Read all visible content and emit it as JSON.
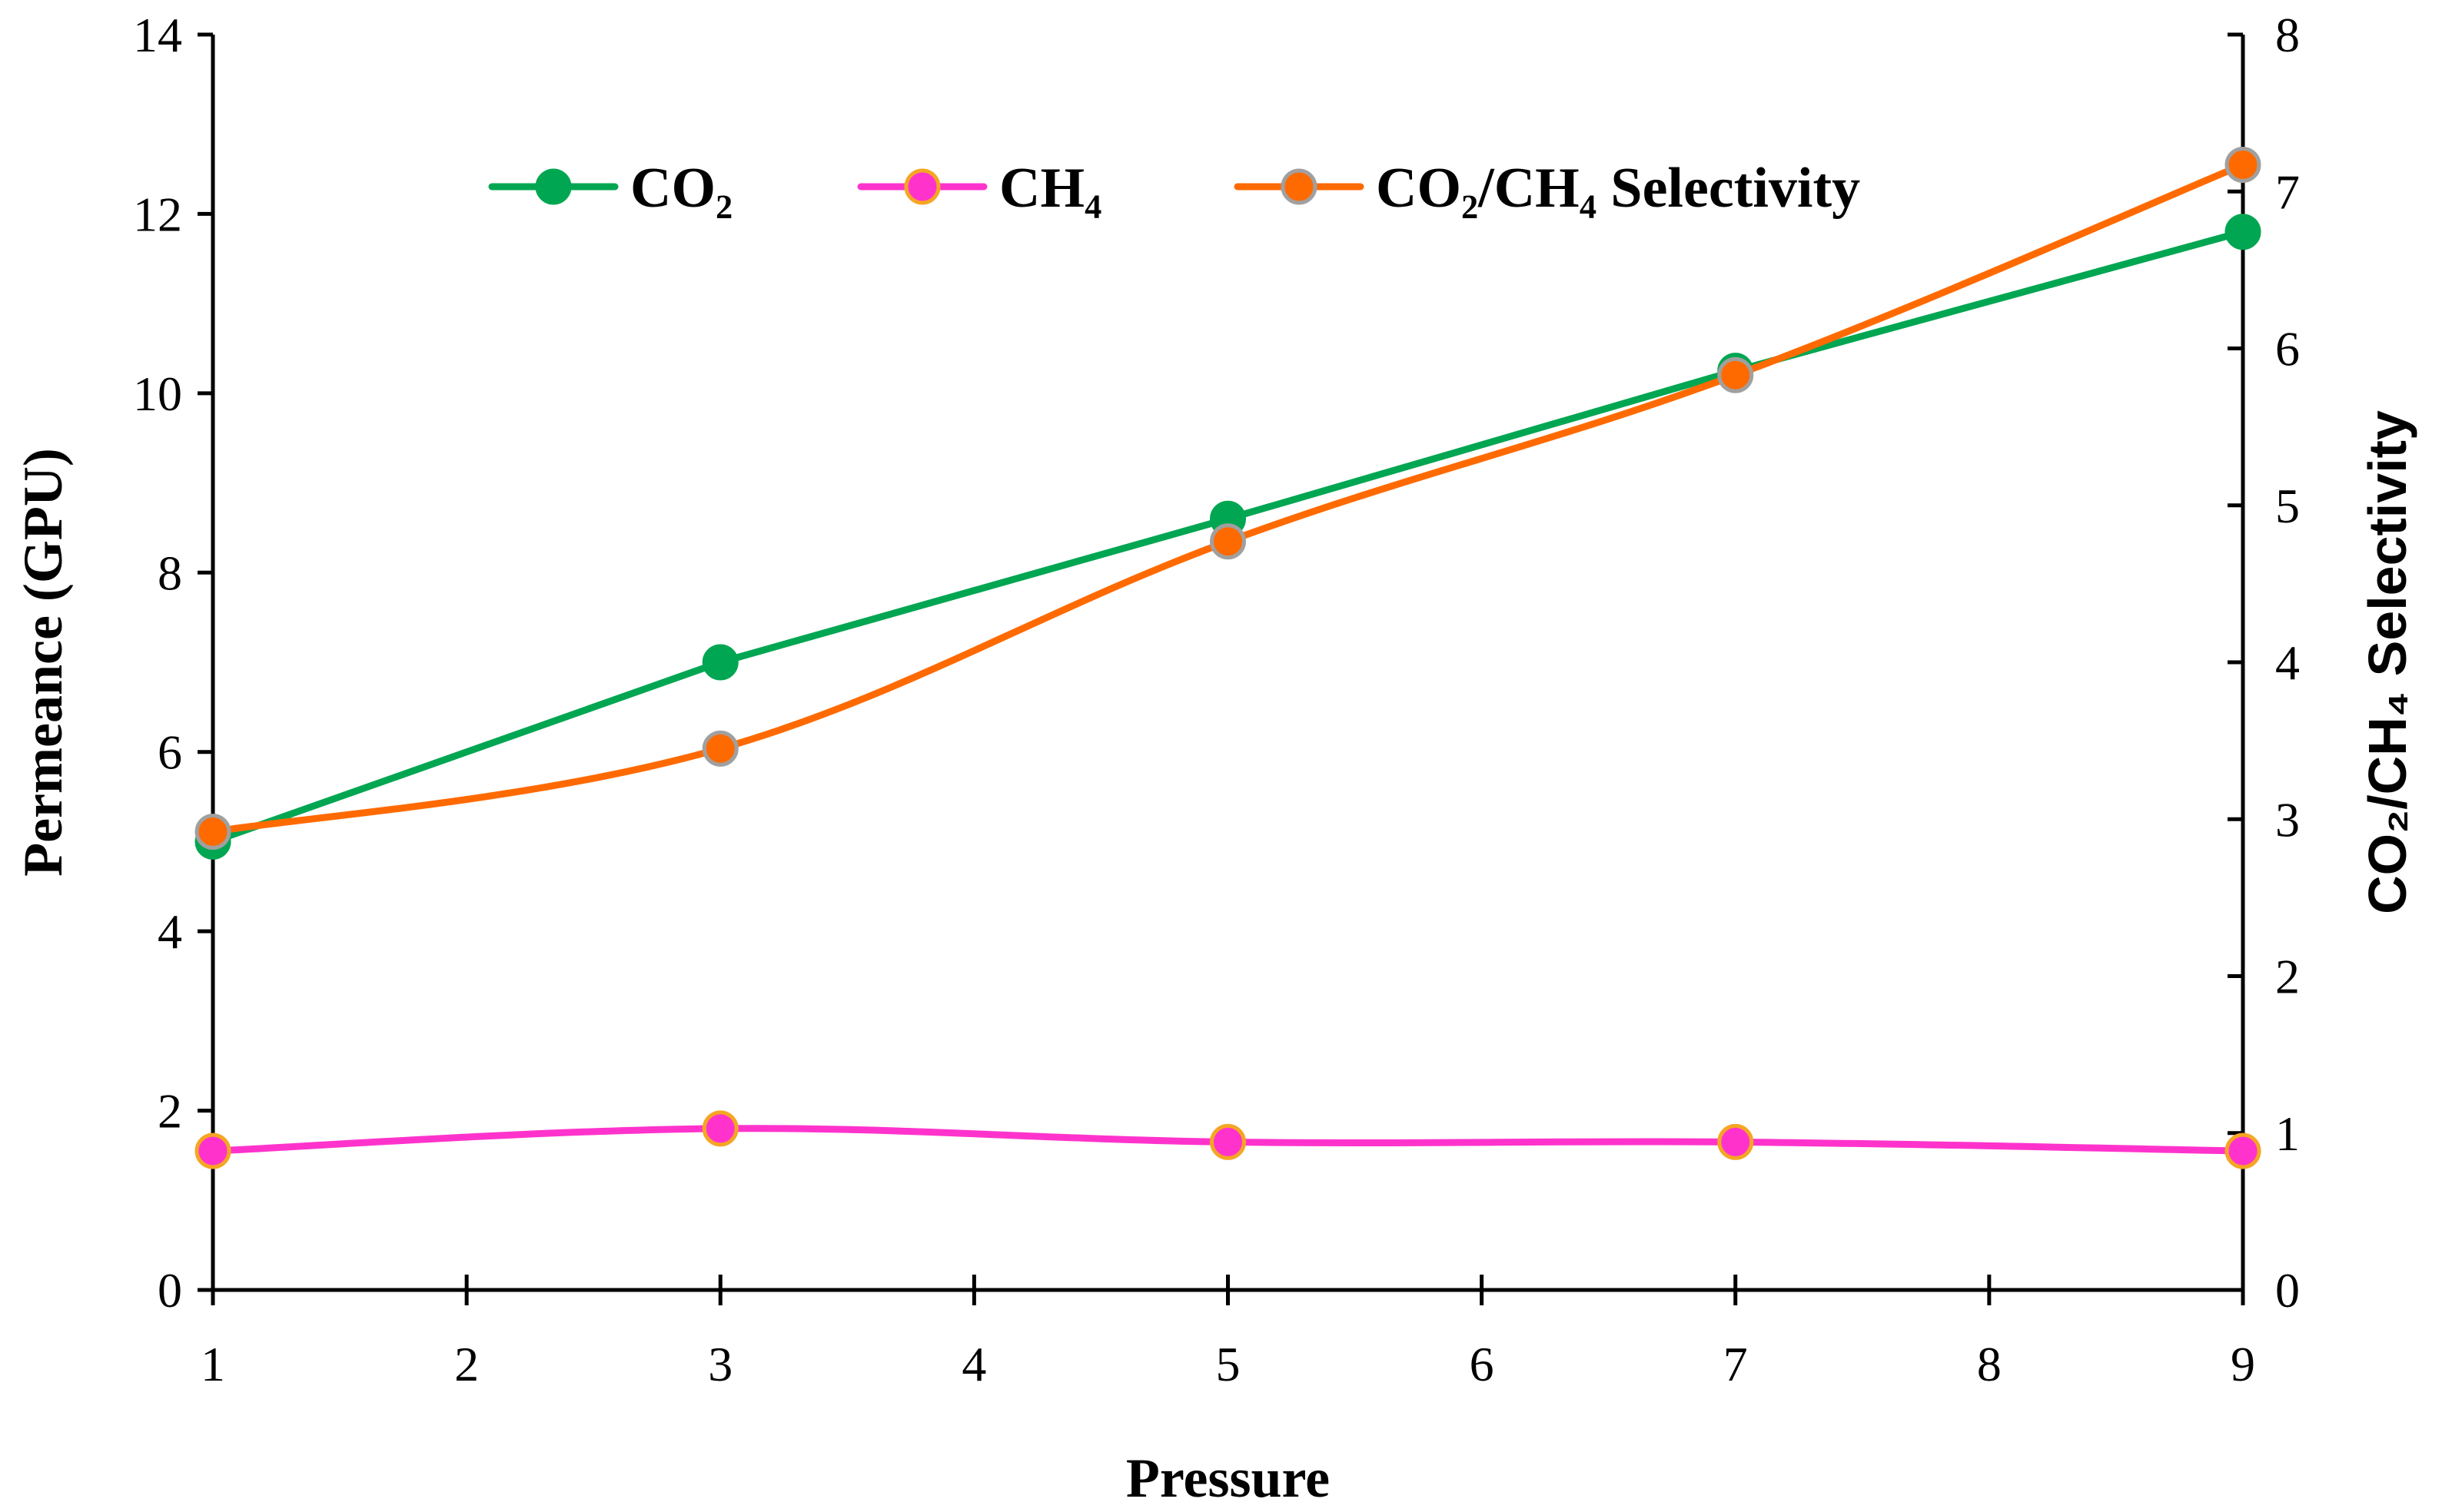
{
  "chart_data": {
    "type": "line",
    "xlabel": "Pressure",
    "ylabel": "Permeance (GPU)",
    "y2label": "CO₂/CH₄ Selectivity",
    "x": [
      1,
      3,
      5,
      7,
      9
    ],
    "xlim": [
      1,
      9
    ],
    "xticks": [
      1,
      2,
      3,
      4,
      5,
      6,
      7,
      8,
      9
    ],
    "ylim": [
      0,
      14
    ],
    "yticks": [
      0,
      2,
      4,
      6,
      8,
      10,
      12,
      14
    ],
    "y2lim": [
      0,
      8
    ],
    "y2ticks": [
      0,
      1,
      2,
      3,
      4,
      5,
      6,
      7,
      8
    ],
    "legend_position": "top-center",
    "grid": false,
    "series": [
      {
        "name": "CO₂",
        "axis": "left",
        "values": [
          5.0,
          7.0,
          8.6,
          10.25,
          11.8
        ],
        "line_color": "#00A651",
        "marker_fill": "#00A651",
        "marker_stroke": "#00A651",
        "smooth": false
      },
      {
        "name": "CH₄",
        "axis": "left",
        "values": [
          1.55,
          1.8,
          1.65,
          1.65,
          1.55
        ],
        "line_color": "#FF33CC",
        "marker_fill": "#FF33CC",
        "marker_stroke": "#F5A623",
        "smooth": true
      },
      {
        "name": "CO₂/CH₄ Selectivity",
        "axis": "right",
        "values": [
          2.92,
          3.45,
          4.77,
          5.83,
          7.17
        ],
        "line_color": "#FF6A00",
        "marker_fill": "#FF6A00",
        "marker_stroke": "#A0A0A0",
        "smooth": true
      }
    ]
  }
}
